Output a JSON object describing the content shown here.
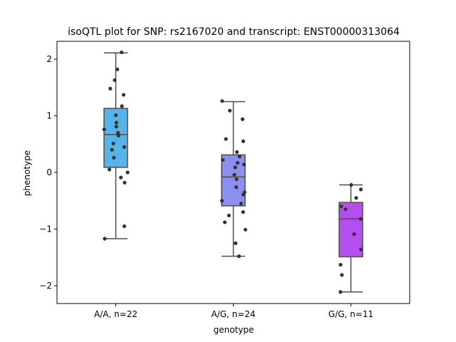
{
  "chart_data": {
    "type": "box",
    "title": "isoQTL plot for SNP: rs2167020 and transcript: ENST00000313064",
    "xlabel": "genotype",
    "ylabel": "phenotype",
    "ylim": [
      -2.3,
      2.3
    ],
    "yticks": [
      {
        "value": 2,
        "label": "2"
      },
      {
        "value": 1,
        "label": "1"
      },
      {
        "value": 0,
        "label": "0"
      },
      {
        "value": -1,
        "label": "−1"
      },
      {
        "value": -2,
        "label": "−2"
      }
    ],
    "grid": false,
    "point_color": "#333333",
    "box_edge_color": "#4d4d4d",
    "categories": [
      {
        "label": "A/A, n=22",
        "color": "#56b4e9",
        "box": {
          "whisker_low": -1.17,
          "q1": 0.09,
          "median": 0.67,
          "q3": 1.13,
          "whisker_high": 2.11
        },
        "points": [
          2.12,
          1.82,
          1.63,
          1.48,
          1.37,
          1.17,
          1.01,
          0.88,
          0.81,
          0.76,
          0.7,
          0.65,
          0.51,
          0.45,
          0.4,
          0.26,
          0.05,
          0.0,
          -0.09,
          -0.18,
          -0.95,
          -1.17
        ]
      },
      {
        "label": "A/G, n=24",
        "color": "#8a8ff0",
        "box": {
          "whisker_low": -1.48,
          "q1": -0.59,
          "median": -0.08,
          "q3": 0.31,
          "whisker_high": 1.25
        },
        "points": [
          1.26,
          1.09,
          0.94,
          0.59,
          0.55,
          0.36,
          0.28,
          0.22,
          0.17,
          0.14,
          0.09,
          -0.04,
          -0.12,
          -0.26,
          -0.35,
          -0.39,
          -0.5,
          -0.55,
          -0.7,
          -0.76,
          -0.88,
          -1.01,
          -1.25,
          -1.48
        ]
      },
      {
        "label": "G/G, n=11",
        "color": "#b44ef0",
        "box": {
          "whisker_low": -2.11,
          "q1": -1.49,
          "median": -0.82,
          "q3": -0.53,
          "whisker_high": -0.22
        },
        "points": [
          -0.22,
          -0.3,
          -0.45,
          -0.6,
          -0.65,
          -0.82,
          -1.09,
          -1.36,
          -1.63,
          -1.81,
          -2.11
        ]
      }
    ]
  }
}
